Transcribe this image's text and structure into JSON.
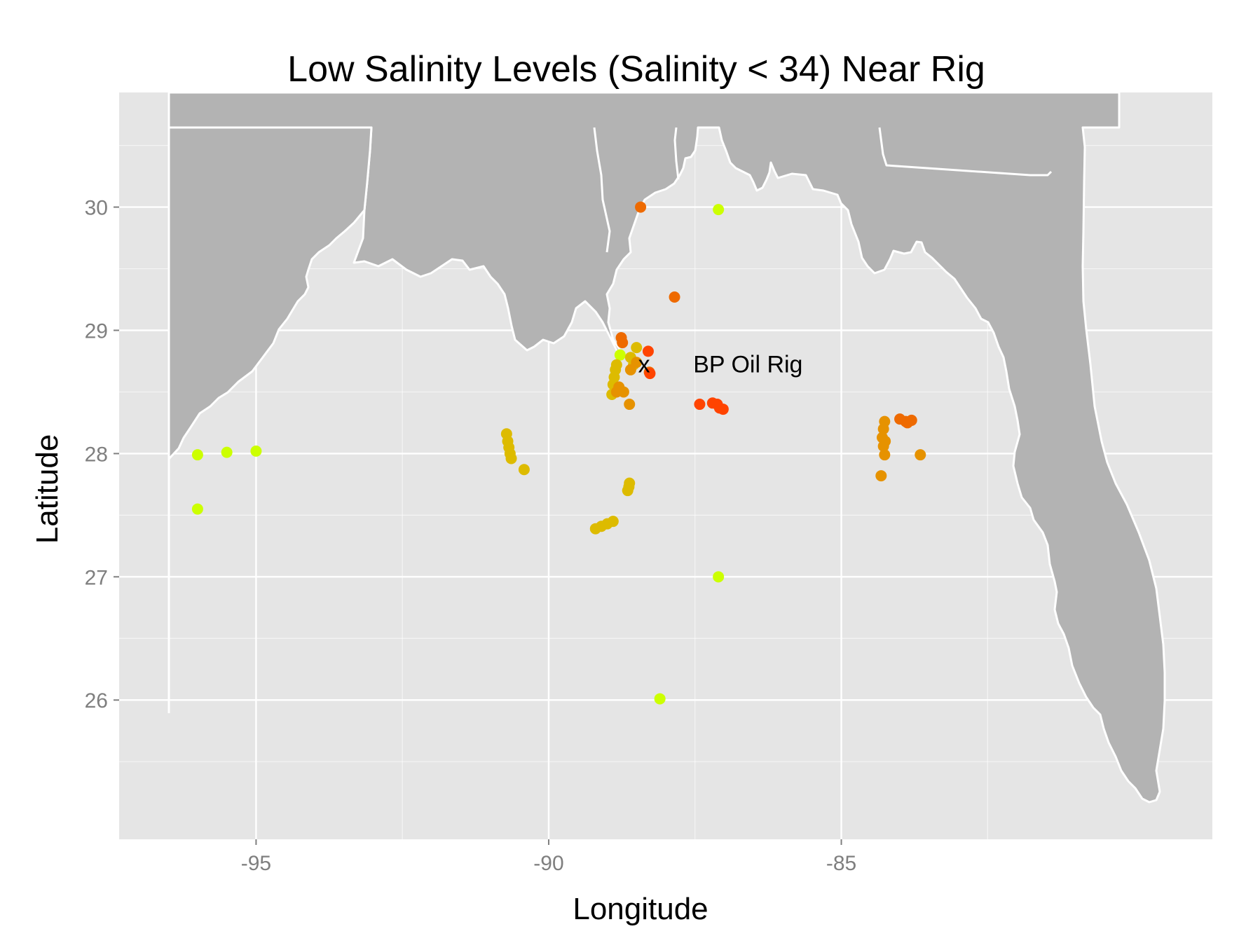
{
  "chart_data": {
    "type": "scatter",
    "title": "Low Salinity Levels (Salinity < 34) Near Rig",
    "xlabel": "Longitude",
    "ylabel": "Latitude",
    "xlim": [
      -97.34,
      -78.66
    ],
    "ylim": [
      24.87,
      30.93
    ],
    "x_ticks": [
      -95,
      -90,
      -85
    ],
    "x_tick_labels": [
      "-95",
      "-90",
      "-85"
    ],
    "y_ticks": [
      26,
      27,
      28,
      29,
      30
    ],
    "y_tick_labels": [
      "26",
      "27",
      "28",
      "29",
      "30"
    ],
    "grid": true,
    "legend": "none",
    "colors": {
      "panel_background": "#e5e5e5",
      "grid_line": "#ffffff",
      "land": "#b3b3b3",
      "coastline": "#ffffff"
    },
    "annotations": [
      {
        "text": "x",
        "x": -88.37,
        "y": 28.71
      },
      {
        "text": "BP Oil Rig",
        "x": -87.53,
        "y": 28.71
      }
    ],
    "series": [
      {
        "color": "#ccff00",
        "points": [
          [
            -96.0,
            27.99
          ],
          [
            -95.5,
            28.01
          ],
          [
            -95.0,
            28.02
          ],
          [
            -96.0,
            27.55
          ],
          [
            -87.1,
            29.98
          ],
          [
            -87.1,
            27.0
          ],
          [
            -88.1,
            26.01
          ],
          [
            -88.78,
            28.8
          ]
        ]
      },
      {
        "color": "#ddbb00",
        "points": [
          [
            -90.72,
            28.16
          ],
          [
            -90.7,
            28.1
          ],
          [
            -90.68,
            28.05
          ],
          [
            -90.66,
            28.0
          ],
          [
            -90.64,
            27.96
          ],
          [
            -90.42,
            27.87
          ],
          [
            -89.2,
            27.39
          ],
          [
            -89.1,
            27.41
          ],
          [
            -89.0,
            27.43
          ],
          [
            -88.9,
            27.45
          ],
          [
            -88.65,
            27.7
          ],
          [
            -88.63,
            27.73
          ],
          [
            -88.62,
            27.76
          ],
          [
            -88.92,
            28.48
          ],
          [
            -88.9,
            28.56
          ],
          [
            -88.88,
            28.62
          ],
          [
            -88.86,
            28.68
          ],
          [
            -88.84,
            28.72
          ],
          [
            -88.6,
            28.78
          ],
          [
            -88.5,
            28.86
          ],
          [
            -88.55,
            28.72
          ]
        ]
      },
      {
        "color": "#e69200",
        "points": [
          [
            -88.62,
            28.4
          ],
          [
            -88.8,
            28.54
          ],
          [
            -88.72,
            28.5
          ],
          [
            -88.84,
            28.5
          ],
          [
            -88.6,
            28.68
          ],
          [
            -88.5,
            28.74
          ],
          [
            -84.32,
            27.82
          ],
          [
            -84.26,
            27.99
          ],
          [
            -84.28,
            28.06
          ],
          [
            -84.3,
            28.13
          ],
          [
            -84.28,
            28.2
          ],
          [
            -84.26,
            28.26
          ],
          [
            -84.25,
            28.1
          ],
          [
            -83.65,
            27.99
          ]
        ]
      },
      {
        "color": "#ee6a00",
        "points": [
          [
            -88.43,
            30.0
          ],
          [
            -87.85,
            29.27
          ],
          [
            -88.76,
            28.94
          ],
          [
            -88.74,
            28.9
          ],
          [
            -88.28,
            28.66
          ],
          [
            -84.0,
            28.28
          ],
          [
            -83.9,
            28.26
          ],
          [
            -83.8,
            28.27
          ],
          [
            -83.87,
            28.25
          ]
        ]
      },
      {
        "color": "#ff4400",
        "points": [
          [
            -88.3,
            28.83
          ],
          [
            -88.27,
            28.65
          ],
          [
            -87.42,
            28.4
          ],
          [
            -87.2,
            28.41
          ],
          [
            -87.12,
            28.4
          ],
          [
            -87.08,
            28.37
          ],
          [
            -87.02,
            28.36
          ]
        ]
      }
    ]
  }
}
